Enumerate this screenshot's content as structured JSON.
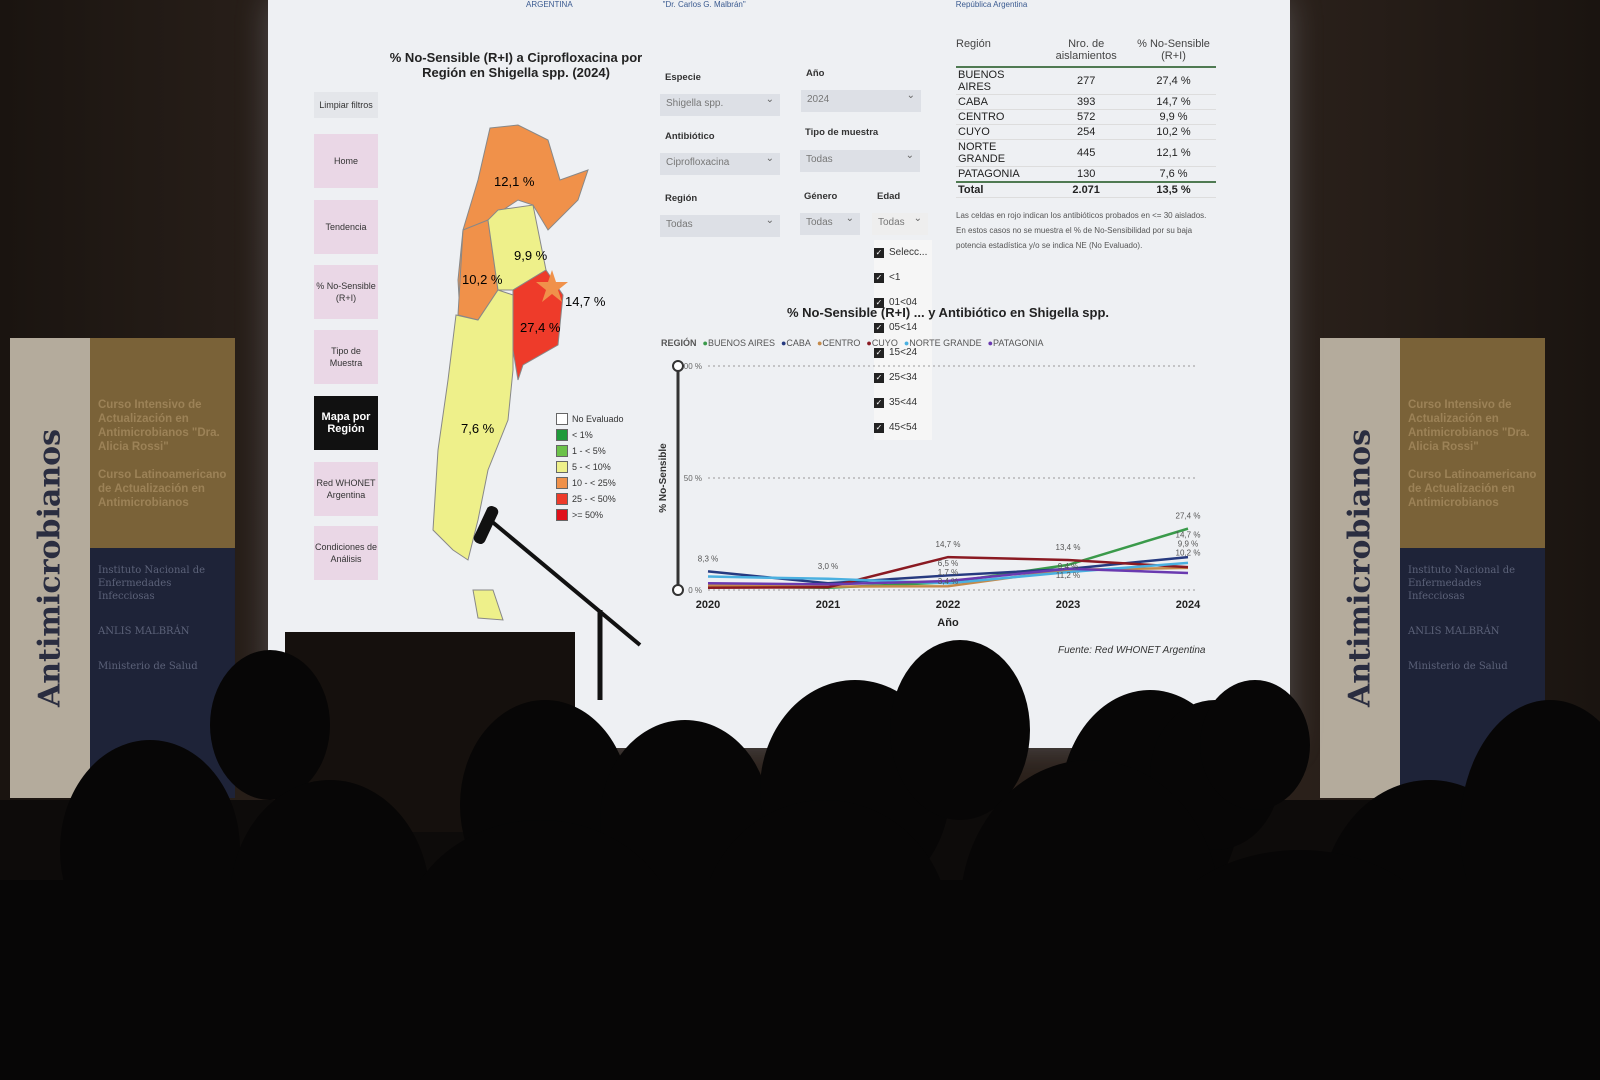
{
  "banners": {
    "vertical_text": "Antimicrobianos",
    "course1": "Curso Intensivo de Actualización en Antimicrobianos \"Dra. Alicia Rossi\"",
    "course2": "Curso Latinoamericano de Actualización en Antimicrobianos",
    "logos": [
      "Instituto Nacional de Enfermedades Infecciosas",
      "ANLIS MALBRÁN",
      "Ministerio de Salud"
    ]
  },
  "dashboard": {
    "header_logos": [
      "ARGENTINA",
      "\"Dr. Carlos G. Malbrán\"",
      "República Argentina"
    ],
    "clear_filters": "Limpiar filtros",
    "nav": [
      "Home",
      "Tendencia",
      "% No-Sensible (R+I)",
      "Tipo de Muestra",
      "Mapa por Región",
      "Red WHONET Argentina",
      "Condiciones de Análisis"
    ],
    "map_title": "% No-Sensible (R+I) a Ciprofloxacina por Región en Shigella spp. (2024)",
    "map_labels": {
      "norte_grande": "12,1 %",
      "centro": "9,9 %",
      "cuyo": "10,2 %",
      "caba": "14,7 %",
      "buenos_aires": "27,4 %",
      "patagonia": "7,6 %"
    },
    "map_legend": [
      {
        "label": "No Evaluado",
        "color": "#ffffff"
      },
      {
        "label": "< 1%",
        "color": "#1f9a3a"
      },
      {
        "label": "1 - < 5%",
        "color": "#6cc24a"
      },
      {
        "label": "5 - < 10%",
        "color": "#eef08a"
      },
      {
        "label": "10 - < 25%",
        "color": "#f0914a"
      },
      {
        "label": "25 - < 50%",
        "color": "#ee3b2a"
      },
      {
        "label": ">= 50%",
        "color": "#e0101a"
      }
    ],
    "filters": {
      "especie": {
        "label": "Especie",
        "value": "Shigella spp."
      },
      "anio": {
        "label": "Año",
        "value": "2024"
      },
      "antibiotico": {
        "label": "Antibiótico",
        "value": "Ciprofloxacina"
      },
      "tipo_muestra": {
        "label": "Tipo de muestra",
        "value": "Todas"
      },
      "region": {
        "label": "Región",
        "value": "Todas"
      },
      "genero": {
        "label": "Género",
        "value": "Todas"
      },
      "edad": {
        "label": "Edad",
        "value": "Todas",
        "options": [
          "Selecc...",
          "<1",
          "01<04",
          "05<14",
          "15<24",
          "25<34",
          "35<44",
          "45<54"
        ]
      }
    },
    "table": {
      "headers": [
        "Región",
        "Nro. de aislamientos",
        "% No-Sensible (R+I)"
      ],
      "rows": [
        [
          "BUENOS AIRES",
          "277",
          "27,4 %"
        ],
        [
          "CABA",
          "393",
          "14,7 %"
        ],
        [
          "CENTRO",
          "572",
          "9,9 %"
        ],
        [
          "CUYO",
          "254",
          "10,2 %"
        ],
        [
          "NORTE GRANDE",
          "445",
          "12,1 %"
        ],
        [
          "PATAGONIA",
          "130",
          "7,6 %"
        ]
      ],
      "total": [
        "Total",
        "2.071",
        "13,5 %"
      ],
      "note": "Las celdas en rojo indican los antibióticos probados en <= 30 aislados. En estos casos no se muestra el % de No-Sensibilidad por su baja potencia estadística y/o se indica NE (No Evaluado)."
    },
    "source": "Fuente: Red WHONET Argentina"
  },
  "chart_data": {
    "type": "line",
    "title": "% No-Sensible (R+I) ... y Antibiótico en Shigella spp.",
    "legend_title": "REGIÓN",
    "xlabel": "Año",
    "ylabel": "% No-Sensible",
    "x": [
      "2020",
      "2021",
      "2022",
      "2023",
      "2024"
    ],
    "ylim": [
      0,
      100
    ],
    "yticks": [
      "0 %",
      "50 %",
      "100 %"
    ],
    "grid": true,
    "legend_position": "top-left",
    "series": [
      {
        "name": "BUENOS AIRES",
        "color": "#3a9a4a",
        "values": [
          1.5,
          1.0,
          3.4,
          11.2,
          27.4
        ]
      },
      {
        "name": "CABA",
        "color": "#263a80",
        "values": [
          8.3,
          3.0,
          6.5,
          9.4,
          14.7
        ]
      },
      {
        "name": "CENTRO",
        "color": "#c58a4a",
        "values": [
          2.0,
          1.5,
          1.7,
          9.0,
          9.9
        ]
      },
      {
        "name": "CUYO",
        "color": "#8a1a22",
        "values": [
          1.0,
          1.2,
          14.7,
          13.4,
          10.2
        ]
      },
      {
        "name": "NORTE GRANDE",
        "color": "#4ab0e0",
        "values": [
          6.0,
          5.0,
          3.0,
          8.0,
          12.1
        ]
      },
      {
        "name": "PATAGONIA",
        "color": "#6a3ab0",
        "values": [
          3.0,
          2.5,
          4.0,
          9.5,
          7.6
        ]
      }
    ],
    "data_labels": [
      [
        "8,3 %",
        "3,0 %",
        "14,7 %",
        "13,4 %",
        "27,4 %"
      ],
      [
        "",
        "",
        "6,5 %",
        "9,4 %",
        "14,7 %"
      ],
      [
        "",
        "",
        "1,7 %",
        "11,2 %",
        "9,9 %"
      ],
      [
        "",
        "",
        "3,4 %",
        "",
        "10,2 %"
      ]
    ]
  }
}
